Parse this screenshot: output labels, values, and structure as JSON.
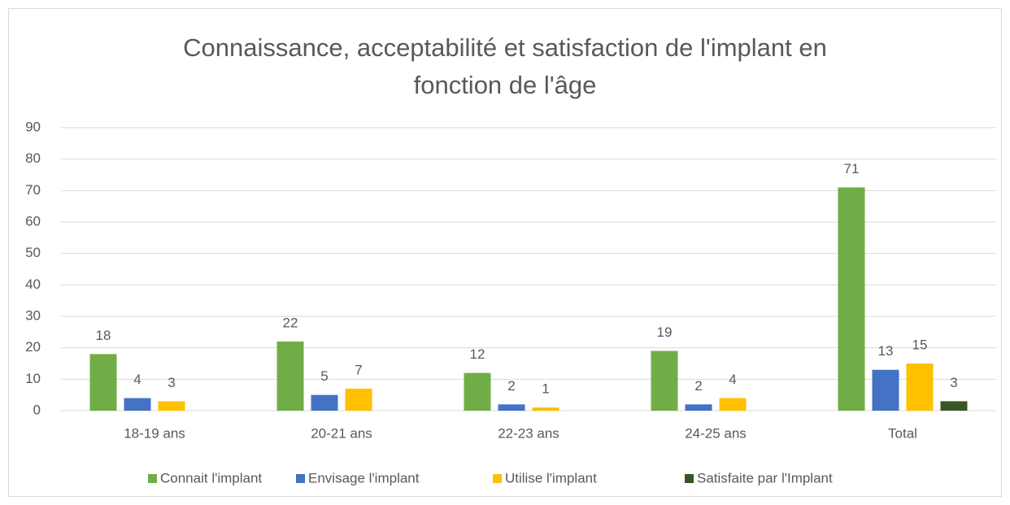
{
  "chart_data": {
    "type": "bar",
    "title": "Connaissance, acceptabilité et satisfaction de l'implant en fonction de l'âge",
    "categories": [
      "18-19 ans",
      "20-21 ans",
      "22-23 ans",
      "24-25 ans",
      "Total"
    ],
    "series": [
      {
        "name": "Connait l'implant",
        "color": "#70ad47",
        "values": [
          18,
          22,
          12,
          19,
          71
        ]
      },
      {
        "name": "Envisage l'implant",
        "color": "#4472c4",
        "values": [
          4,
          5,
          2,
          2,
          13
        ]
      },
      {
        "name": "Utilise l'implant",
        "color": "#ffc000",
        "values": [
          3,
          7,
          1,
          4,
          15
        ]
      },
      {
        "name": "Satisfaite par l'Implant",
        "color": "#375623",
        "values": [
          null,
          null,
          null,
          null,
          3
        ]
      }
    ],
    "ylim": [
      0,
      90
    ],
    "yticks": [
      0,
      10,
      20,
      30,
      40,
      50,
      60,
      70,
      80,
      90
    ],
    "grid": true,
    "legend": "bottom"
  }
}
